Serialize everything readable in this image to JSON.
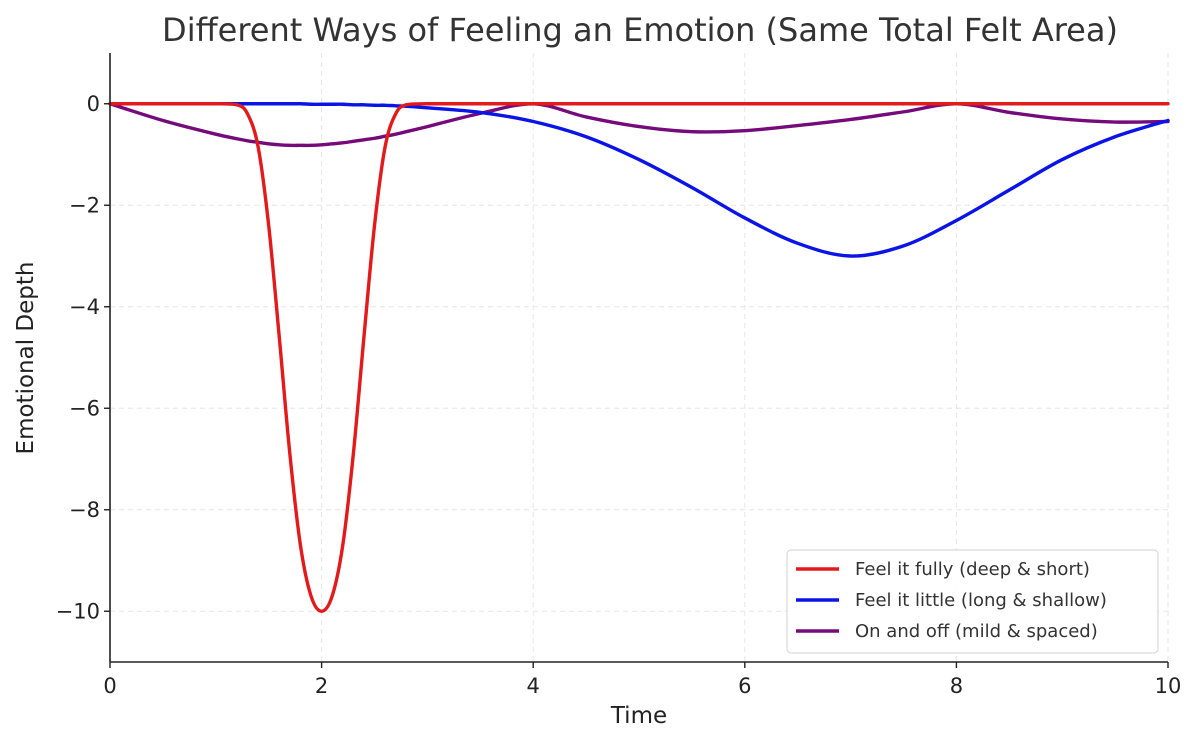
{
  "chart_data": {
    "type": "line",
    "title": "Different Ways of Feeling an Emotion (Same Total Felt Area)",
    "xlabel": "Time",
    "ylabel": "Emotional Depth",
    "xlim": [
      0,
      10
    ],
    "ylim": [
      -11,
      1
    ],
    "xticks": [
      0,
      2,
      4,
      6,
      8,
      10
    ],
    "xtick_labels": [
      "0",
      "2",
      "4",
      "6",
      "8",
      "10"
    ],
    "yticks": [
      0,
      -2,
      -4,
      -6,
      -8,
      -10
    ],
    "ytick_labels": [
      "0",
      "−2",
      "−4",
      "−6",
      "−8",
      "−10"
    ],
    "grid": true,
    "legend_position": "bottom-right",
    "x": [
      0,
      0.5,
      1,
      1.2,
      1.3,
      1.4,
      1.5,
      1.6,
      1.7,
      1.8,
      1.9,
      2,
      2.1,
      2.2,
      2.3,
      2.4,
      2.5,
      2.6,
      2.7,
      2.8,
      3,
      3.5,
      4,
      4.5,
      5,
      5.5,
      6,
      6.5,
      7,
      7.5,
      8,
      8.5,
      9,
      9.5,
      10
    ],
    "series": [
      {
        "name": "Feel it fully (deep & short)",
        "color": "#e31a1c",
        "values": [
          0,
          0,
          0,
          -0.02,
          -0.2,
          -0.85,
          -2.4,
          -4.6,
          -6.9,
          -8.7,
          -9.7,
          -10,
          -9.7,
          -8.7,
          -6.9,
          -4.6,
          -2.4,
          -0.85,
          -0.2,
          -0.02,
          0,
          0,
          0,
          0,
          0,
          0,
          0,
          0,
          0,
          0,
          0,
          0,
          0,
          0,
          0
        ]
      },
      {
        "name": "Feel it little (long & shallow)",
        "color": "#0a14e6",
        "values": [
          0,
          0,
          0,
          0,
          0,
          0,
          0,
          0,
          0,
          0,
          -0.01,
          -0.01,
          -0.01,
          -0.01,
          -0.02,
          -0.02,
          -0.03,
          -0.03,
          -0.04,
          -0.05,
          -0.08,
          -0.17,
          -0.35,
          -0.65,
          -1.1,
          -1.65,
          -2.25,
          -2.75,
          -3.0,
          -2.8,
          -2.3,
          -1.7,
          -1.1,
          -0.65,
          -0.33
        ]
      },
      {
        "name": "On and off (mild & spaced)",
        "color": "#750b7a",
        "values": [
          0,
          -0.33,
          -0.6,
          -0.69,
          -0.73,
          -0.76,
          -0.79,
          -0.81,
          -0.82,
          -0.82,
          -0.82,
          -0.81,
          -0.79,
          -0.77,
          -0.74,
          -0.71,
          -0.68,
          -0.64,
          -0.6,
          -0.55,
          -0.45,
          -0.19,
          0,
          -0.26,
          -0.45,
          -0.55,
          -0.53,
          -0.43,
          -0.31,
          -0.16,
          0,
          -0.17,
          -0.3,
          -0.36,
          -0.35
        ]
      }
    ]
  }
}
